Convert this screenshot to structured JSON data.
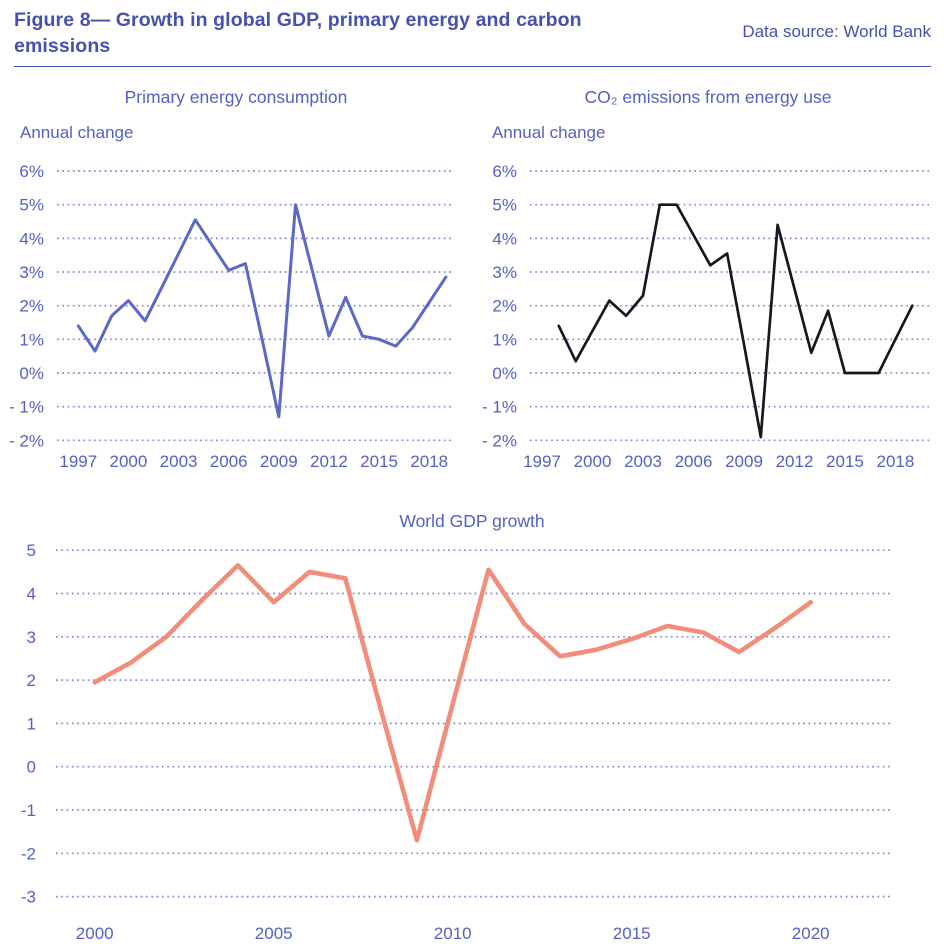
{
  "header": {
    "title_line1": "Figure 8— Growth in global GDP, primary energy and carbon",
    "title_line2": "emissions",
    "data_source": "Data source: World Bank"
  },
  "colors": {
    "accent_text": "#4650b2",
    "chart_text": "#5460c4",
    "gridline": "#6b74c4",
    "energy_line": "#5a68c6",
    "co2_line": "#17171c",
    "gdp_line": "#f28d7c"
  },
  "chart_data": [
    {
      "id": "energy",
      "type": "line",
      "title": "Primary energy consumption",
      "ylabel": "Annual change",
      "unit": "%",
      "grid": true,
      "ylim": [
        -2,
        6
      ],
      "xlim": [
        1997,
        2019
      ],
      "x": [
        1997,
        1998,
        1999,
        2000,
        2001,
        2002,
        2003,
        2004,
        2005,
        2006,
        2007,
        2008,
        2009,
        2010,
        2011,
        2012,
        2013,
        2014,
        2015,
        2016,
        2017,
        2018,
        2019
      ],
      "values": [
        1.4,
        0.65,
        1.7,
        2.15,
        1.55,
        2.55,
        3.55,
        4.55,
        3.8,
        3.05,
        3.25,
        1.0,
        -1.3,
        5.0,
        3.05,
        1.1,
        2.25,
        1.1,
        1.0,
        0.8,
        1.35,
        2.1,
        2.85
      ],
      "yticks": [
        {
          "label": "6%",
          "value": 6
        },
        {
          "label": "5%",
          "value": 5
        },
        {
          "label": "4%",
          "value": 4
        },
        {
          "label": "3%",
          "value": 3
        },
        {
          "label": "2%",
          "value": 2
        },
        {
          "label": "1%",
          "value": 1
        },
        {
          "label": "0%",
          "value": 0
        },
        {
          "label": "- 1%",
          "value": -1
        },
        {
          "label": "- 2%",
          "value": -2
        }
      ],
      "xticks": [
        {
          "label": "1997",
          "year": 1997
        },
        {
          "label": "2000",
          "year": 2000
        },
        {
          "label": "2003",
          "year": 2003
        },
        {
          "label": "2006",
          "year": 2006
        },
        {
          "label": "2009",
          "year": 2009
        },
        {
          "label": "2012",
          "year": 2012
        },
        {
          "label": "2015",
          "year": 2015
        },
        {
          "label": "2018",
          "year": 2018
        }
      ]
    },
    {
      "id": "co2",
      "type": "line",
      "title": "CO₂ emissions from energy use",
      "ylabel": "Annual change",
      "unit": "%",
      "grid": true,
      "ylim": [
        -2,
        6
      ],
      "xlim": [
        1998,
        2019
      ],
      "x": [
        1998,
        1999,
        2000,
        2001,
        2002,
        2003,
        2004,
        2005,
        2006,
        2007,
        2008,
        2009,
        2010,
        2011,
        2012,
        2013,
        2014,
        2015,
        2016,
        2017,
        2018,
        2019
      ],
      "values": [
        1.4,
        0.35,
        1.25,
        2.15,
        1.7,
        2.3,
        5.0,
        5.0,
        4.1,
        3.2,
        3.55,
        0.85,
        -1.9,
        4.4,
        2.5,
        0.6,
        1.85,
        0.0,
        0.0,
        0.0,
        1.0,
        2.0
      ],
      "yticks": [
        {
          "label": "6%",
          "value": 6
        },
        {
          "label": "5%",
          "value": 5
        },
        {
          "label": "4%",
          "value": 4
        },
        {
          "label": "3%",
          "value": 3
        },
        {
          "label": "2%",
          "value": 2
        },
        {
          "label": "1%",
          "value": 1
        },
        {
          "label": "0%",
          "value": 0
        },
        {
          "label": "- 1%",
          "value": -1
        },
        {
          "label": "- 2%",
          "value": -2
        }
      ],
      "xticks": [
        {
          "label": "1997",
          "year": 1997
        },
        {
          "label": "2000",
          "year": 2000
        },
        {
          "label": "2003",
          "year": 2003
        },
        {
          "label": "2006",
          "year": 2006
        },
        {
          "label": "2009",
          "year": 2009
        },
        {
          "label": "2012",
          "year": 2012
        },
        {
          "label": "2015",
          "year": 2015
        },
        {
          "label": "2018",
          "year": 2018
        }
      ]
    },
    {
      "id": "gdp",
      "type": "line",
      "title": "World GDP growth",
      "ylabel": "",
      "unit": "",
      "grid": true,
      "ylim": [
        -3,
        5
      ],
      "xlim": [
        2000,
        2020
      ],
      "x": [
        2000,
        2001,
        2002,
        2003,
        2004,
        2005,
        2006,
        2007,
        2008,
        2009,
        2010,
        2011,
        2012,
        2013,
        2014,
        2015,
        2016,
        2017,
        2018,
        2019,
        2020
      ],
      "values": [
        1.95,
        2.4,
        3.0,
        3.85,
        4.65,
        3.8,
        4.5,
        4.35,
        1.3,
        -1.7,
        1.45,
        4.55,
        3.3,
        2.55,
        2.7,
        2.95,
        3.25,
        3.1,
        2.65,
        3.2,
        3.8
      ],
      "yticks": [
        {
          "label": "5",
          "value": 5
        },
        {
          "label": "4",
          "value": 4
        },
        {
          "label": "3",
          "value": 3
        },
        {
          "label": "2",
          "value": 2
        },
        {
          "label": "1",
          "value": 1
        },
        {
          "label": "0",
          "value": 0
        },
        {
          "label": "-1",
          "value": -1
        },
        {
          "label": "-2",
          "value": -2
        },
        {
          "label": "-3",
          "value": -3
        }
      ],
      "xticks": [
        {
          "label": "2000",
          "year": 2000
        },
        {
          "label": "2005",
          "year": 2005
        },
        {
          "label": "2010",
          "year": 2010
        },
        {
          "label": "2015",
          "year": 2015
        },
        {
          "label": "2020",
          "year": 2020
        }
      ]
    }
  ]
}
